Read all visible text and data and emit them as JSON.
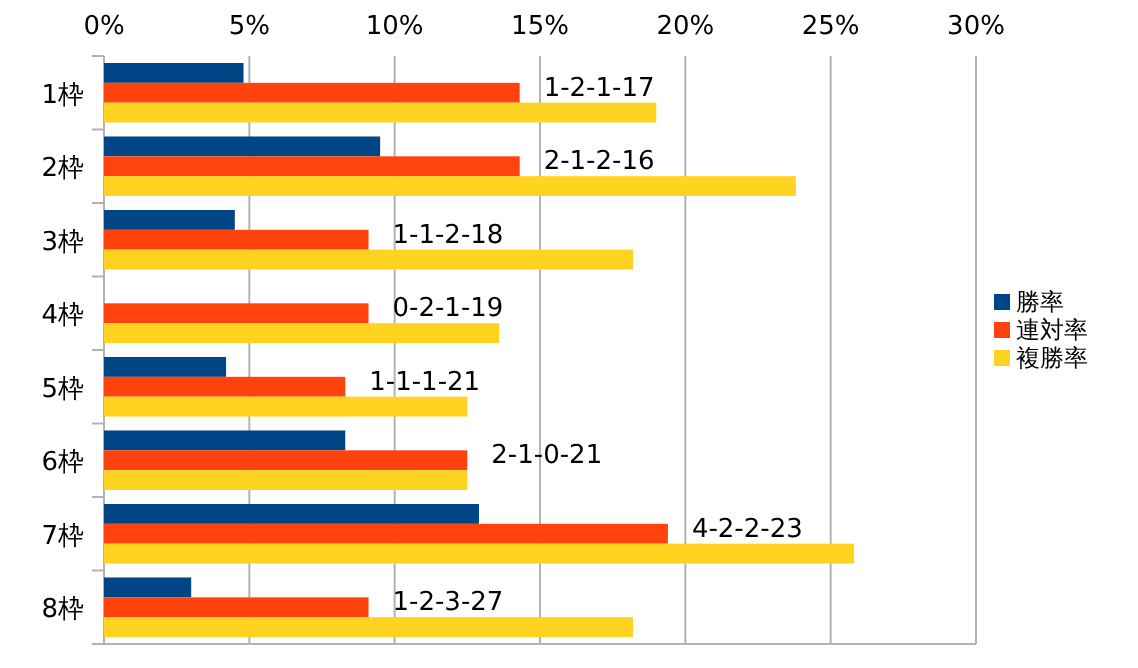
{
  "chart_data": {
    "type": "bar",
    "orientation": "horizontal",
    "categories": [
      "1枠",
      "2枠",
      "3枠",
      "4枠",
      "5枠",
      "6枠",
      "7枠",
      "8枠"
    ],
    "series": [
      {
        "name": "勝率",
        "color": "#004586",
        "values": [
          4.8,
          9.5,
          4.5,
          0,
          4.2,
          8.3,
          12.9,
          3.0
        ]
      },
      {
        "name": "連対率",
        "color": "#ff420e",
        "values": [
          14.3,
          14.3,
          9.1,
          9.1,
          8.3,
          12.5,
          19.4,
          9.1
        ]
      },
      {
        "name": "複勝率",
        "color": "#ffd320",
        "values": [
          19.0,
          23.8,
          18.2,
          13.6,
          12.5,
          12.5,
          25.8,
          18.2
        ]
      }
    ],
    "xlim": [
      0,
      30
    ],
    "xticks": [
      {
        "value": 0,
        "label": "0%"
      },
      {
        "value": 5,
        "label": "5%"
      },
      {
        "value": 10,
        "label": "10%"
      },
      {
        "value": 15,
        "label": "15%"
      },
      {
        "value": 20,
        "label": "20%"
      },
      {
        "value": 25,
        "label": "25%"
      },
      {
        "value": 30,
        "label": "30%"
      }
    ],
    "grid": "x",
    "legend": "right",
    "annotations": [
      "1-2-1-17",
      "2-1-2-16",
      "1-1-2-18",
      "0-2-1-19",
      "1-1-1-21",
      "2-1-0-21",
      "4-2-2-23",
      "1-2-3-27"
    ]
  }
}
